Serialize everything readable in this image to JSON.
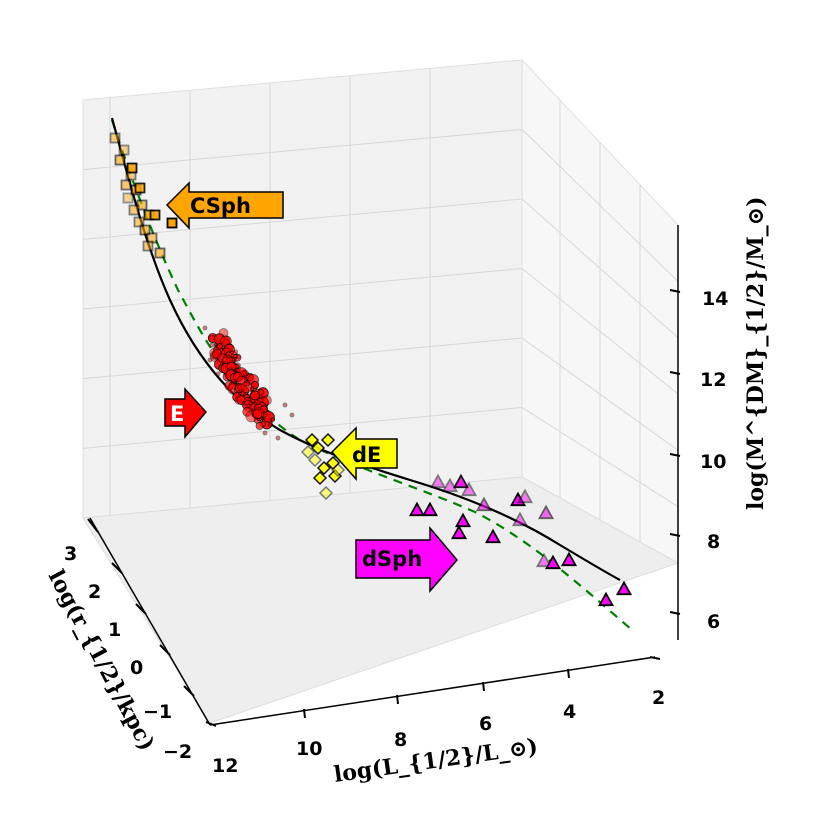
{
  "chart_data": {
    "type": "scatter",
    "projection": "3d",
    "axes": {
      "x": {
        "label": "log(L_{1/2}/L_⊙)",
        "ticks": [
          "12",
          "10",
          "8",
          "6",
          "4",
          "2"
        ]
      },
      "y": {
        "label": "log(r_{1/2}/kpc)",
        "ticks": [
          "3",
          "2",
          "1",
          "0",
          "−1",
          "−2"
        ]
      },
      "z": {
        "label": "log(M^{DM}_{1/2}/M_⊙)",
        "ticks": [
          "14",
          "12",
          "10",
          "8",
          "6"
        ]
      }
    },
    "grid": true,
    "labels": [
      {
        "text": "CSph",
        "color": "#ffa500"
      },
      {
        "text": "E",
        "color": "#ff0000"
      },
      {
        "text": "dE",
        "color": "#ffff00"
      },
      {
        "text": "dSph",
        "color": "#ff00ff"
      }
    ],
    "series": [
      {
        "label": "CSph",
        "marker": "square",
        "color": "#ffa500"
      },
      {
        "label": "E",
        "marker": "circle",
        "color": "#ff0000"
      },
      {
        "label": "dE",
        "marker": "diamond",
        "color": "#ffff00"
      },
      {
        "label": "dSph",
        "marker": "triangle",
        "color": "#ff00ff"
      }
    ],
    "fit_lines": [
      {
        "style": "solid",
        "color": "#000000"
      },
      {
        "style": "dashed",
        "color": "#008000"
      }
    ]
  }
}
